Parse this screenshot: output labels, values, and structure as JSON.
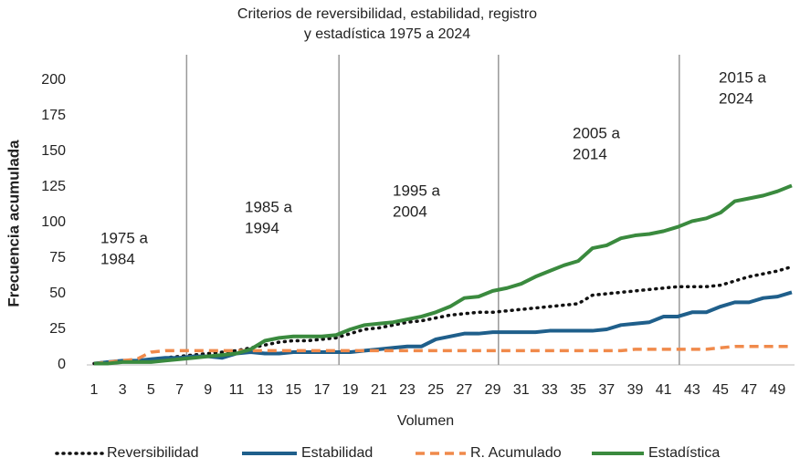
{
  "chart_data": {
    "type": "line",
    "title": [
      "Criterios de reversibilidad, estabilidad, registro",
      "y estadística 1975 a 2024"
    ],
    "xlabel": "Volumen",
    "ylabel": "Frecuencia acumulada",
    "x": [
      1,
      2,
      3,
      4,
      5,
      6,
      7,
      8,
      9,
      10,
      11,
      12,
      13,
      14,
      15,
      16,
      17,
      18,
      19,
      20,
      21,
      22,
      23,
      24,
      25,
      26,
      27,
      28,
      29,
      30,
      31,
      32,
      33,
      34,
      35,
      36,
      37,
      38,
      39,
      40,
      41,
      42,
      43,
      44,
      45,
      46,
      47,
      48,
      49,
      50
    ],
    "xlim": [
      1,
      50
    ],
    "xticks": [
      1,
      3,
      5,
      7,
      9,
      11,
      13,
      15,
      17,
      19,
      21,
      23,
      25,
      27,
      29,
      31,
      33,
      35,
      37,
      39,
      41,
      43,
      45,
      47,
      49
    ],
    "ylim": [
      0,
      200
    ],
    "yticks": [
      0,
      25,
      50,
      75,
      100,
      125,
      150,
      175,
      200
    ],
    "vlines": [
      7.5,
      18.2,
      29.4,
      42.1
    ],
    "annotations": [
      [
        "1975 a",
        "1984"
      ],
      [
        "1985 a",
        "1994"
      ],
      [
        "1995 a",
        "2004"
      ],
      [
        "2005 a",
        "2014"
      ],
      [
        "2015 a",
        "2024"
      ]
    ],
    "series": [
      {
        "name": "Reversibilidad",
        "color": "#111111",
        "style": "dotted",
        "values": [
          1,
          2,
          2,
          3,
          4,
          5,
          6,
          7,
          8,
          9,
          10,
          12,
          14,
          16,
          17,
          17,
          18,
          19,
          22,
          25,
          26,
          28,
          30,
          31,
          33,
          35,
          36,
          37,
          37,
          38,
          39,
          40,
          41,
          42,
          43,
          49,
          50,
          51,
          52,
          53,
          54,
          55,
          55,
          55,
          56,
          59,
          62,
          64,
          66,
          69
        ]
      },
      {
        "name": "Estabilidad",
        "color": "#1f5f8b",
        "style": "solid",
        "values": [
          1,
          2,
          3,
          3,
          4,
          5,
          5,
          6,
          6,
          5,
          8,
          9,
          8,
          8,
          9,
          9,
          9,
          9,
          9,
          10,
          11,
          12,
          13,
          13,
          18,
          20,
          22,
          22,
          23,
          23,
          23,
          23,
          24,
          24,
          24,
          24,
          25,
          28,
          29,
          30,
          34,
          34,
          37,
          37,
          41,
          44,
          44,
          47,
          48,
          51
        ]
      },
      {
        "name": "R. Acumulado",
        "color": "#f08a4b",
        "style": "dashed",
        "values": [
          1,
          2,
          3,
          4,
          9,
          10,
          10,
          10,
          10,
          10,
          10,
          10,
          10,
          10,
          10,
          10,
          10,
          10,
          10,
          10,
          10,
          10,
          10,
          10,
          10,
          10,
          10,
          10,
          10,
          10,
          10,
          10,
          10,
          10,
          10,
          10,
          10,
          10,
          11,
          11,
          11,
          11,
          11,
          11,
          12,
          13,
          13,
          13,
          13,
          13
        ]
      },
      {
        "name": "Estadística",
        "color": "#3a8a3e",
        "style": "solid",
        "values": [
          1,
          1,
          2,
          2,
          2,
          3,
          4,
          5,
          6,
          7,
          8,
          11,
          17,
          19,
          20,
          20,
          20,
          21,
          25,
          28,
          29,
          30,
          32,
          34,
          37,
          41,
          47,
          48,
          52,
          54,
          57,
          62,
          66,
          70,
          73,
          82,
          84,
          89,
          91,
          92,
          94,
          97,
          101,
          103,
          107,
          115,
          117,
          119,
          122,
          126
        ]
      }
    ]
  }
}
